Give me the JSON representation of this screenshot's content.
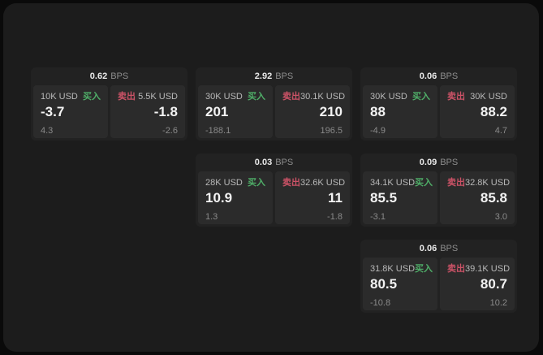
{
  "board": {
    "name": "quote-board",
    "bps_unit": "BPS",
    "buy_label": "买入",
    "sell_label": "卖出"
  },
  "colors": {
    "page_bg": "#0a0a0a",
    "panel_bg": "#1c1c1c",
    "card_bg": "#222222",
    "tile_bg": "#2b2b2b",
    "buy_green": "#4fae68",
    "sell_red": "#ca5266"
  },
  "cards": [
    {
      "row": 1,
      "col": 1,
      "bps_value": "0.62",
      "bps_unit": "BPS",
      "buy": {
        "size": "10K USD",
        "label": "买入",
        "price": "-3.7",
        "delta": "4.3"
      },
      "sell": {
        "size": "5.5K USD",
        "label": "卖出",
        "price": "-1.8",
        "delta": "-2.6"
      }
    },
    {
      "row": 1,
      "col": 2,
      "bps_value": "2.92",
      "bps_unit": "BPS",
      "buy": {
        "size": "30K USD",
        "label": "买入",
        "price": "201",
        "delta": "-188.1"
      },
      "sell": {
        "size": "30.1K USD",
        "label": "卖出",
        "price": "210",
        "delta": "196.5"
      }
    },
    {
      "row": 1,
      "col": 3,
      "bps_value": "0.06",
      "bps_unit": "BPS",
      "buy": {
        "size": "30K USD",
        "label": "买入",
        "price": "88",
        "delta": "-4.9"
      },
      "sell": {
        "size": "30K USD",
        "label": "卖出",
        "price": "88.2",
        "delta": "4.7"
      }
    },
    {
      "row": 2,
      "col": 2,
      "bps_value": "0.03",
      "bps_unit": "BPS",
      "buy": {
        "size": "28K USD",
        "label": "买入",
        "price": "10.9",
        "delta": "1.3"
      },
      "sell": {
        "size": "32.6K USD",
        "label": "卖出",
        "price": "11",
        "delta": "-1.8"
      }
    },
    {
      "row": 2,
      "col": 3,
      "bps_value": "0.09",
      "bps_unit": "BPS",
      "buy": {
        "size": "34.1K USD",
        "label": "买入",
        "price": "85.5",
        "delta": "-3.1"
      },
      "sell": {
        "size": "32.8K USD",
        "label": "卖出",
        "price": "85.8",
        "delta": "3.0"
      }
    },
    {
      "row": 3,
      "col": 3,
      "bps_value": "0.06",
      "bps_unit": "BPS",
      "buy": {
        "size": "31.8K USD",
        "label": "买入",
        "price": "80.5",
        "delta": "-10.8"
      },
      "sell": {
        "size": "39.1K USD",
        "label": "卖出",
        "price": "80.7",
        "delta": "10.2"
      }
    }
  ]
}
